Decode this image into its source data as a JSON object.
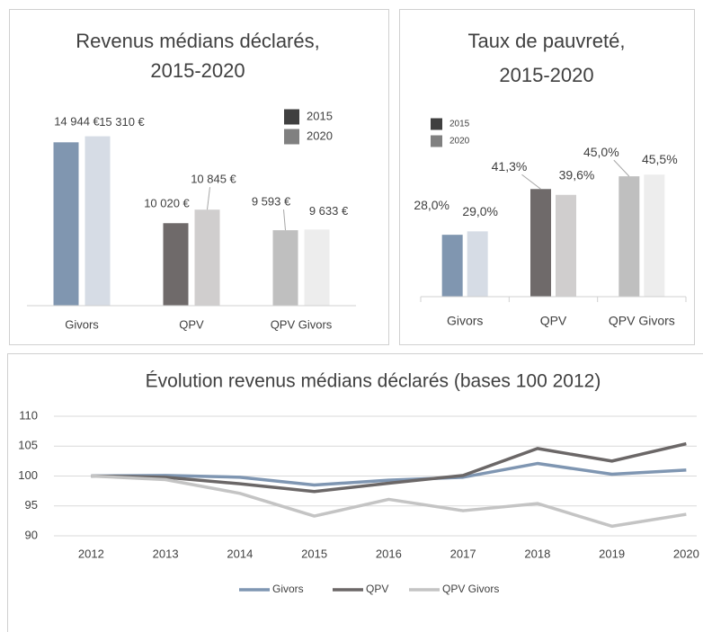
{
  "chart_data": [
    {
      "type": "bar",
      "title": [
        "Revenus médians déclarés,",
        "2015-2020"
      ],
      "categories": [
        "Givors",
        "QPV",
        "QPV Givors"
      ],
      "series": [
        {
          "name": "2015",
          "color": "#404040",
          "colors": [
            "#8096b0",
            "#6f6a6a",
            "#bfbfbf"
          ],
          "values": [
            14944,
            10020,
            9593
          ],
          "value_labels": [
            "14 944 €",
            "10 020 €",
            "9 593 €"
          ]
        },
        {
          "name": "2020",
          "color": "#808080",
          "colors": [
            "#d6dce5",
            "#d0cece",
            "#ededed"
          ],
          "values": [
            15310,
            10845,
            9633
          ],
          "value_labels": [
            "15 310 €",
            "10 845 €",
            "9 633 €"
          ]
        }
      ],
      "ylim": [
        5000,
        16000
      ]
    },
    {
      "type": "bar",
      "title": [
        "Taux de pauvreté,",
        "2015-2020"
      ],
      "categories": [
        "Givors",
        "QPV",
        "QPV Givors"
      ],
      "series": [
        {
          "name": "2015",
          "color": "#404040",
          "colors": [
            "#8096b0",
            "#6f6a6a",
            "#bfbfbf"
          ],
          "values": [
            28.0,
            41.3,
            45.0
          ],
          "value_labels": [
            "28,0%",
            "41,3%",
            "45,0%"
          ]
        },
        {
          "name": "2020",
          "color": "#808080",
          "colors": [
            "#d6dce5",
            "#d0cece",
            "#ededed"
          ],
          "values": [
            29.0,
            39.6,
            45.5
          ],
          "value_labels": [
            "29,0%",
            "39,6%",
            "45,5%"
          ]
        }
      ],
      "ylim": [
        10,
        50
      ]
    },
    {
      "type": "line",
      "title": "Évolution revenus médians déclarés (bases 100 2012)",
      "categories": [
        "2012",
        "2013",
        "2014",
        "2015",
        "2016",
        "2017",
        "2018",
        "2019",
        "2020"
      ],
      "series": [
        {
          "name": "Givors",
          "color": "#7f96b2",
          "values": [
            100,
            100.1,
            99.8,
            98.5,
            99.3,
            99.8,
            102.1,
            100.3,
            101.0
          ]
        },
        {
          "name": "QPV",
          "color": "#6b6767",
          "values": [
            100,
            99.8,
            98.7,
            97.4,
            98.8,
            100.1,
            104.6,
            102.5,
            105.4
          ]
        },
        {
          "name": "QPV Givors",
          "color": "#c4c4c4",
          "values": [
            100,
            99.4,
            97.1,
            93.3,
            96.1,
            94.2,
            95.4,
            91.6,
            93.6
          ]
        }
      ],
      "ylim": [
        90,
        110
      ],
      "yticks": [
        90,
        95,
        100,
        105,
        110
      ],
      "grid": true
    }
  ]
}
